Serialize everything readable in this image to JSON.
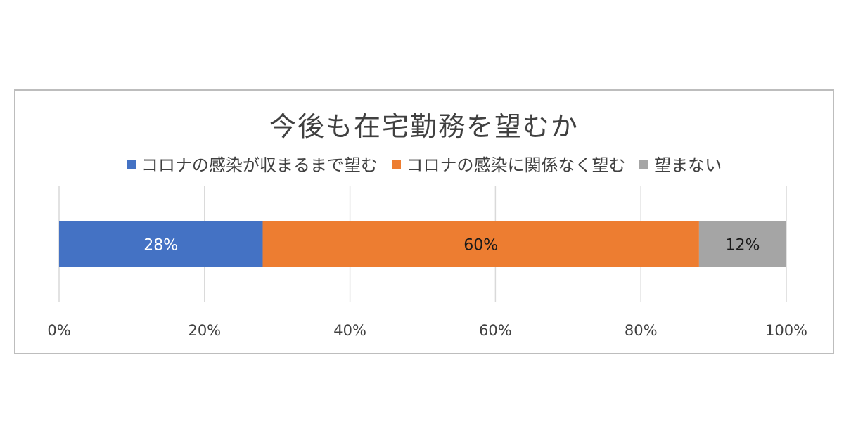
{
  "chart_data": {
    "type": "bar",
    "orientation": "horizontal",
    "stacked": true,
    "title": "今後も在宅勤務を望むか",
    "xlabel": "",
    "ylabel": "",
    "xlim": [
      0,
      100
    ],
    "ticks": [
      "0%",
      "20%",
      "40%",
      "60%",
      "80%",
      "100%"
    ],
    "tick_values": [
      0,
      20,
      40,
      60,
      80,
      100
    ],
    "grid": true,
    "legend_position": "top",
    "series": [
      {
        "name": "コロナの感染が収まるまで望む",
        "value": 28,
        "label": "28%",
        "color": "#4472c4",
        "label_color": "#ffffff"
      },
      {
        "name": "コロナの感染に関係なく望む",
        "value": 60,
        "label": "60%",
        "color": "#ed7d31",
        "label_color": "#1a1a1a"
      },
      {
        "name": "望まない",
        "value": 12,
        "label": "12%",
        "color": "#a5a5a5",
        "label_color": "#1a1a1a"
      }
    ]
  }
}
